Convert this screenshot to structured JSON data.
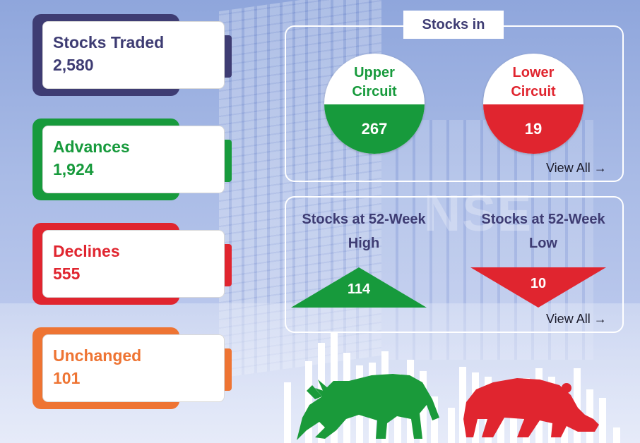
{
  "stats": [
    {
      "label": "Stocks Traded",
      "value": "2,580",
      "color": "#3e3c73"
    },
    {
      "label": "Advances",
      "value": "1,924",
      "color": "#179a3c"
    },
    {
      "label": "Declines",
      "value": "555",
      "color": "#e0252f"
    },
    {
      "label": "Unchanged",
      "value": "101",
      "color": "#ee7433"
    }
  ],
  "circuit": {
    "title": "Stocks in",
    "upper": {
      "label_line1": "Upper",
      "label_line2": "Circuit",
      "value": "267",
      "color": "#179a3c"
    },
    "lower": {
      "label_line1": "Lower",
      "label_line2": "Circuit",
      "value": "19",
      "color": "#e0252f"
    },
    "view_all": "View All →"
  },
  "week52": {
    "high": {
      "label_line1": "Stocks at 52-Week",
      "label_line2": "High",
      "value": "114",
      "color": "#179a3c"
    },
    "low": {
      "label_line1": "Stocks at 52-Week",
      "label_line2": "Low",
      "value": "10",
      "color": "#e0252f"
    },
    "view_all": "View All →"
  },
  "illustration": {
    "bull_icon": "bull-icon",
    "bear_icon": "bear-icon",
    "bull_color": "#1a9a3a",
    "bear_color": "#e0252f"
  }
}
